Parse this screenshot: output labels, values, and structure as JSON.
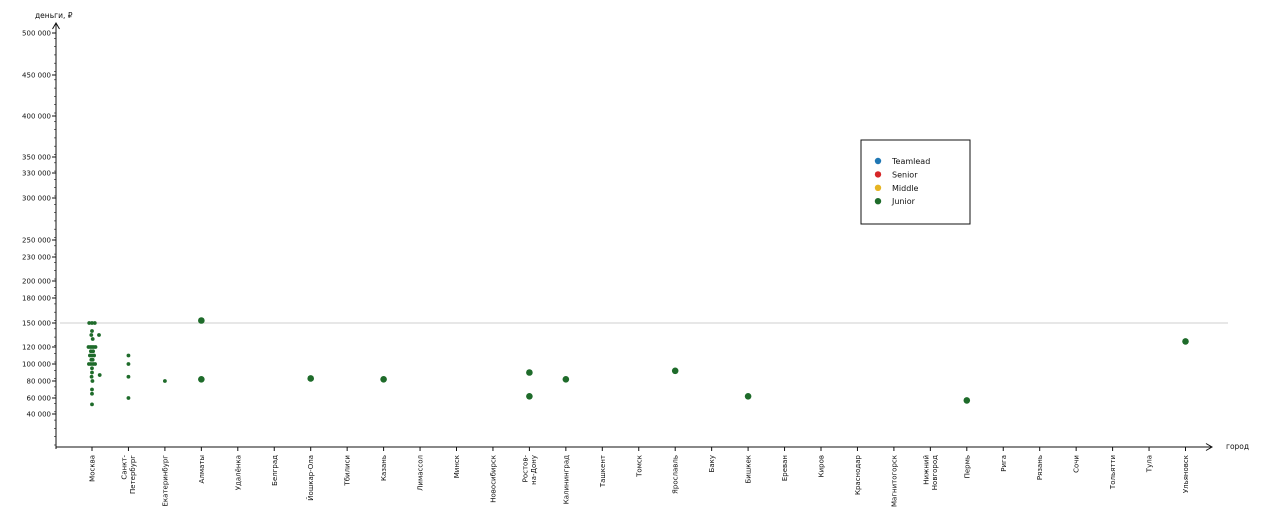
{
  "chart_data": {
    "type": "scatter",
    "ylabel": "деньги, ₽",
    "xlabel": "город",
    "ylim": [
      0,
      510000
    ],
    "y_ticks": [
      40000,
      60000,
      80000,
      100000,
      120000,
      150000,
      180000,
      200000,
      230000,
      250000,
      300000,
      330000,
      350000,
      400000,
      450000,
      500000
    ],
    "y_tick_labels": [
      "40 000",
      "60 000",
      "80 000",
      "100 000",
      "120 000",
      "150 000",
      "180 000",
      "200 000",
      "230 000",
      "250 000",
      "300 000",
      "330 000",
      "350 000",
      "400 000",
      "450 000",
      "500 000"
    ],
    "reference_line_y": 150000,
    "categories": [
      [
        "Москва"
      ],
      [
        "Санкт-",
        "Петербург"
      ],
      [
        "Екатеринбург"
      ],
      [
        "Алматы"
      ],
      [
        "Удалёнка"
      ],
      [
        "Белград"
      ],
      [
        "Йошкар-Ола"
      ],
      [
        "Тбилиси"
      ],
      [
        "Казань"
      ],
      [
        "Лимассол"
      ],
      [
        "Минск"
      ],
      [
        "Новосибирск"
      ],
      [
        "Ростов-",
        "на-Дону"
      ],
      [
        "Калининград"
      ],
      [
        "Ташкент"
      ],
      [
        "Томск"
      ],
      [
        "Ярославль"
      ],
      [
        "Баку"
      ],
      [
        "Бишкек"
      ],
      [
        "Ереван"
      ],
      [
        "Киров"
      ],
      [
        "Краснодар"
      ],
      [
        "Магнитогорск"
      ],
      [
        "Нижний",
        "Новгород"
      ],
      [
        "Пермь"
      ],
      [
        "Рига"
      ],
      [
        "Рязань"
      ],
      [
        "Сочи"
      ],
      [
        "Тольятти"
      ],
      [
        "Тула"
      ],
      [
        "Ульяновск"
      ]
    ],
    "legend": {
      "placement": "top-right",
      "entries": [
        {
          "name": "Teamlead",
          "color": "#1f77b4"
        },
        {
          "name": "Senior",
          "color": "#d62728"
        },
        {
          "name": "Middle",
          "color": "#e6b422"
        },
        {
          "name": "Junior",
          "color": "#1e6b2a"
        }
      ]
    },
    "series": [
      {
        "name": "Junior",
        "color": "#1e6b2a",
        "points": [
          {
            "city": 0,
            "offset": -0.2,
            "y": 150000,
            "size": 1
          },
          {
            "city": 0,
            "offset": 0,
            "y": 150000,
            "size": 1
          },
          {
            "city": 0,
            "offset": 0.2,
            "y": 150000,
            "size": 1
          },
          {
            "city": 0,
            "offset": 0,
            "y": 140000,
            "size": 1
          },
          {
            "city": 0,
            "offset": -0.05,
            "y": 135000,
            "size": 1
          },
          {
            "city": 0,
            "offset": 0.05,
            "y": 130000,
            "size": 1
          },
          {
            "city": 0,
            "offset": -0.25,
            "y": 120000,
            "size": 1
          },
          {
            "city": 0,
            "offset": -0.12,
            "y": 120000,
            "size": 1
          },
          {
            "city": 0,
            "offset": 0,
            "y": 120000,
            "size": 1
          },
          {
            "city": 0,
            "offset": 0.12,
            "y": 120000,
            "size": 1
          },
          {
            "city": 0,
            "offset": 0.25,
            "y": 120000,
            "size": 1
          },
          {
            "city": 0,
            "offset": -0.08,
            "y": 115000,
            "size": 1
          },
          {
            "city": 0,
            "offset": 0.08,
            "y": 115000,
            "size": 1
          },
          {
            "city": 0,
            "offset": -0.15,
            "y": 110000,
            "size": 1
          },
          {
            "city": 0,
            "offset": 0,
            "y": 110000,
            "size": 1
          },
          {
            "city": 0,
            "offset": 0.15,
            "y": 110000,
            "size": 1
          },
          {
            "city": 0,
            "offset": -0.05,
            "y": 105000,
            "size": 1
          },
          {
            "city": 0,
            "offset": 0.05,
            "y": 105000,
            "size": 1
          },
          {
            "city": 0,
            "offset": -0.22,
            "y": 100000,
            "size": 1
          },
          {
            "city": 0,
            "offset": -0.08,
            "y": 100000,
            "size": 1
          },
          {
            "city": 0,
            "offset": 0.08,
            "y": 100000,
            "size": 1
          },
          {
            "city": 0,
            "offset": 0.22,
            "y": 100000,
            "size": 1
          },
          {
            "city": 0,
            "offset": 0,
            "y": 95000,
            "size": 1
          },
          {
            "city": 0,
            "offset": 0,
            "y": 90000,
            "size": 1
          },
          {
            "city": 0,
            "offset": -0.03,
            "y": 85000,
            "size": 1
          },
          {
            "city": 0,
            "offset": 0.03,
            "y": 80000,
            "size": 1
          },
          {
            "city": 0,
            "offset": 0,
            "y": 70000,
            "size": 1
          },
          {
            "city": 0,
            "offset": 0,
            "y": 65000,
            "size": 1
          },
          {
            "city": 0,
            "offset": 0,
            "y": 52000,
            "size": 1
          },
          {
            "city": 0,
            "offset": 0.5,
            "y": 135000,
            "size": 1
          },
          {
            "city": 0,
            "offset": 0.55,
            "y": 87000,
            "size": 1
          },
          {
            "city": 1,
            "offset": 0,
            "y": 110000,
            "size": 1
          },
          {
            "city": 1,
            "offset": 0,
            "y": 100000,
            "size": 1
          },
          {
            "city": 1,
            "offset": 0,
            "y": 85000,
            "size": 1
          },
          {
            "city": 1,
            "offset": 0,
            "y": 60000,
            "size": 1
          },
          {
            "city": 2,
            "offset": 0,
            "y": 80000,
            "size": 1
          },
          {
            "city": 3,
            "offset": 0,
            "y": 153000,
            "size": 2
          },
          {
            "city": 3,
            "offset": 0,
            "y": 82000,
            "size": 2
          },
          {
            "city": 6,
            "offset": 0,
            "y": 83000,
            "size": 2
          },
          {
            "city": 8,
            "offset": 0,
            "y": 82000,
            "size": 2
          },
          {
            "city": 12,
            "offset": 0,
            "y": 90000,
            "size": 2
          },
          {
            "city": 12,
            "offset": 0,
            "y": 62000,
            "size": 2
          },
          {
            "city": 13,
            "offset": 0,
            "y": 82000,
            "size": 2
          },
          {
            "city": 16,
            "offset": 0,
            "y": 92000,
            "size": 2
          },
          {
            "city": 18,
            "offset": 0,
            "y": 62000,
            "size": 2
          },
          {
            "city": 24,
            "offset": 0,
            "y": 57000,
            "size": 2
          },
          {
            "city": 30,
            "offset": 0,
            "y": 127000,
            "size": 2
          }
        ]
      }
    ]
  }
}
